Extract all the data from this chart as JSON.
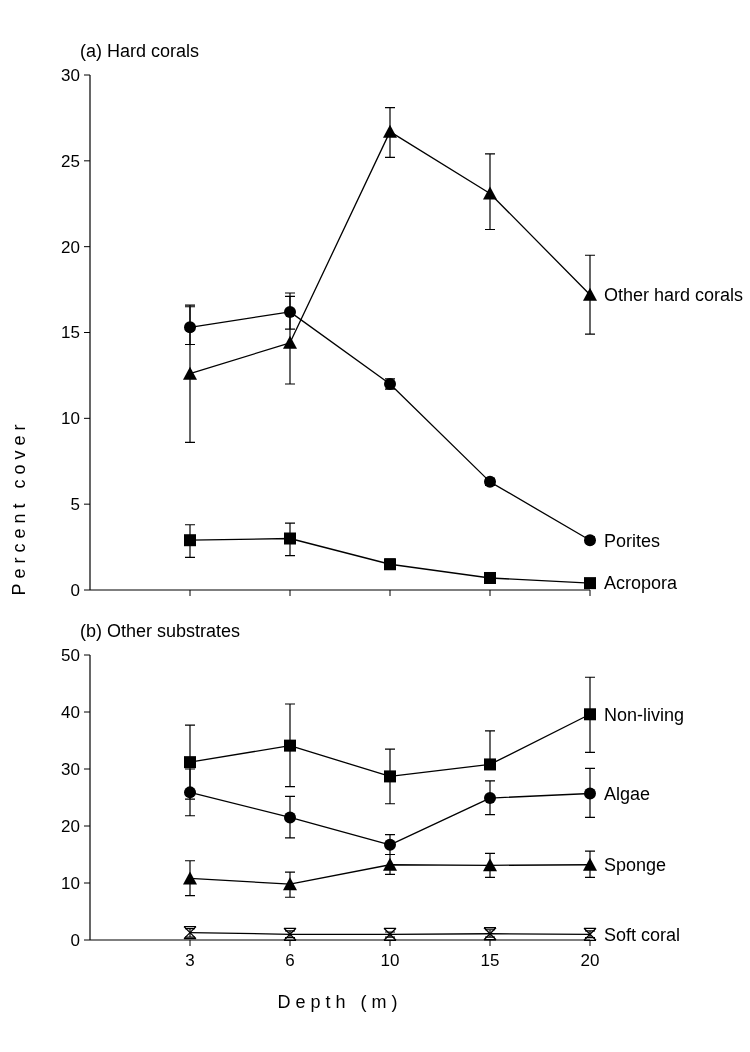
{
  "chart_data": [
    {
      "type": "line",
      "title": "(a) Hard corals",
      "ylabel": "Percent cover",
      "categories": [
        "3",
        "6",
        "10",
        "15",
        "20"
      ],
      "ylim": [
        0,
        30
      ],
      "yticks": [
        0,
        5,
        10,
        15,
        20,
        25,
        30
      ],
      "tick_labels": "y",
      "grid": false,
      "series": [
        {
          "name": "Other hard corals",
          "color": "#000000",
          "marker": "triangle",
          "values": [
            12.6,
            14.4,
            26.7,
            23.1,
            17.2
          ],
          "errors": [
            [
              8.6,
              16.5
            ],
            [
              12,
              17.1
            ],
            [
              25.2,
              28.1
            ],
            [
              21,
              25.4
            ],
            [
              14.9,
              19.5
            ]
          ]
        },
        {
          "name": "Porites",
          "color": "#000000",
          "marker": "circle",
          "values": [
            15.3,
            16.2,
            12.0,
            6.3,
            2.9
          ],
          "errors": [
            [
              14.3,
              16.6
            ],
            [
              15.2,
              17.3
            ],
            [
              11.7,
              12.3
            ],
            [
              6.1,
              6.5
            ],
            [
              2.8,
              3.1
            ]
          ]
        },
        {
          "name": "Acropora",
          "color": "#000000",
          "marker": "square",
          "values": [
            2.9,
            3.0,
            1.5,
            0.7,
            0.4
          ],
          "errors": [
            [
              1.9,
              3.8
            ],
            [
              2.0,
              3.9
            ],
            [
              1.2,
              1.8
            ],
            null,
            null
          ]
        }
      ]
    },
    {
      "type": "line",
      "title": "(b) Other substrates",
      "xlabel": "Depth (m)",
      "categories": [
        "3",
        "6",
        "10",
        "15",
        "20"
      ],
      "ylim": [
        0,
        50
      ],
      "yticks": [
        0,
        10,
        20,
        30,
        40,
        50
      ],
      "grid": false,
      "series": [
        {
          "name": "Non-living",
          "color": "#000000",
          "marker": "square",
          "values": [
            31.2,
            34.1,
            28.7,
            30.8,
            39.6
          ],
          "errors": [
            [
              24.7,
              37.7
            ],
            [
              26.9,
              41.4
            ],
            [
              23.9,
              33.5
            ],
            [
              30.8,
              36.7
            ],
            [
              32.9,
              46.1
            ]
          ]
        },
        {
          "name": "Algae",
          "color": "#000000",
          "marker": "circle",
          "values": [
            25.9,
            21.5,
            16.7,
            24.9,
            25.7
          ],
          "errors": [
            [
              21.8,
              30
            ],
            [
              17.9,
              25.2
            ],
            [
              15,
              18.5
            ],
            [
              22,
              27.9
            ],
            [
              21.5,
              30.1
            ]
          ]
        },
        {
          "name": "Sponge",
          "color": "#000000",
          "marker": "triangle",
          "values": [
            10.8,
            9.8,
            13.2,
            13.1,
            13.2
          ],
          "errors": [
            [
              7.8,
              13.9
            ],
            [
              7.5,
              11.9
            ],
            [
              11.5,
              15
            ],
            [
              11,
              15.2
            ],
            [
              11,
              15.6
            ]
          ]
        },
        {
          "name": "Soft coral",
          "color": "#000000",
          "marker": "cross",
          "values": [
            1.3,
            1.0,
            1.0,
            1.1,
            1.0
          ],
          "errors": [
            [
              0.5,
              2
            ],
            [
              0.4,
              1.6
            ],
            [
              0.5,
              1.4
            ],
            [
              0.5,
              1.8
            ],
            [
              0.4,
              1.6
            ]
          ]
        }
      ]
    }
  ]
}
